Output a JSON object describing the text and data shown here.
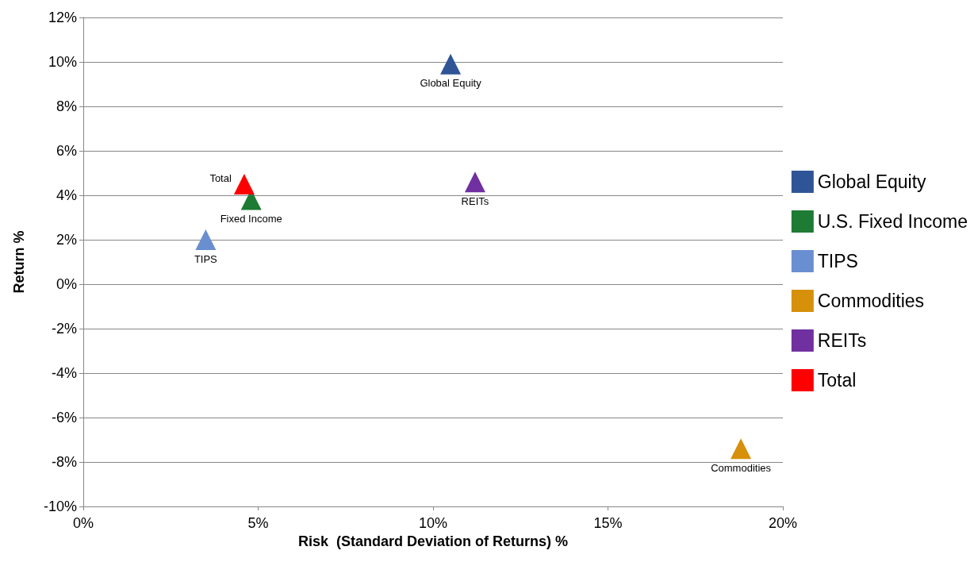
{
  "chart_data": {
    "type": "scatter",
    "xlabel": "Risk  (Standard Deviation of Returns) %",
    "ylabel": "Return %",
    "xlim": [
      0,
      20
    ],
    "xticks": [
      {
        "value": 0,
        "label": "0%"
      },
      {
        "value": 5,
        "label": "5%"
      },
      {
        "value": 10,
        "label": "10%"
      },
      {
        "value": 15,
        "label": "15%"
      },
      {
        "value": 20,
        "label": "20%"
      }
    ],
    "ylim": [
      -10,
      12
    ],
    "yticks": [
      {
        "value": -10,
        "label": "-10%"
      },
      {
        "value": -8,
        "label": "-8%"
      },
      {
        "value": -6,
        "label": "-6%"
      },
      {
        "value": -4,
        "label": "-4%"
      },
      {
        "value": -2,
        "label": "-2%"
      },
      {
        "value": 0,
        "label": "0%"
      },
      {
        "value": 2,
        "label": "2%"
      },
      {
        "value": 4,
        "label": "4%"
      },
      {
        "value": 6,
        "label": "6%"
      },
      {
        "value": 8,
        "label": "8%"
      },
      {
        "value": 10,
        "label": "10%"
      },
      {
        "value": 12,
        "label": "12%"
      }
    ],
    "grid": "y",
    "legend": "right",
    "marker": "triangle",
    "series": [
      {
        "name": "Global Equity",
        "color": "#2f5597",
        "x": [
          10.5
        ],
        "values": [
          9.9
        ]
      },
      {
        "name": "U.S. Fixed Income",
        "color": "#1e7b34",
        "x": [
          4.8
        ],
        "values": [
          3.8
        ]
      },
      {
        "name": "TIPS",
        "color": "#6a8fd0",
        "x": [
          3.5
        ],
        "values": [
          2.0
        ]
      },
      {
        "name": "Commodities",
        "color": "#d6900a",
        "x": [
          18.8
        ],
        "values": [
          -7.4
        ]
      },
      {
        "name": "REITs",
        "color": "#7030a0",
        "x": [
          11.2
        ],
        "values": [
          4.6
        ]
      },
      {
        "name": "Total",
        "color": "#ff0000",
        "x": [
          4.6
        ],
        "values": [
          4.5
        ]
      }
    ],
    "annotations": [
      {
        "text": "Global Equity",
        "x": 10.5,
        "y": 9.9
      },
      {
        "text": "Fixed Income",
        "x": 4.8,
        "y": 3.8
      },
      {
        "text": "TIPS",
        "x": 3.5,
        "y": 2.0
      },
      {
        "text": "Commodities",
        "x": 18.8,
        "y": -7.4
      },
      {
        "text": "REITs",
        "x": 11.2,
        "y": 4.6
      },
      {
        "text": "Total",
        "x": 4.6,
        "y": 4.5
      }
    ]
  }
}
